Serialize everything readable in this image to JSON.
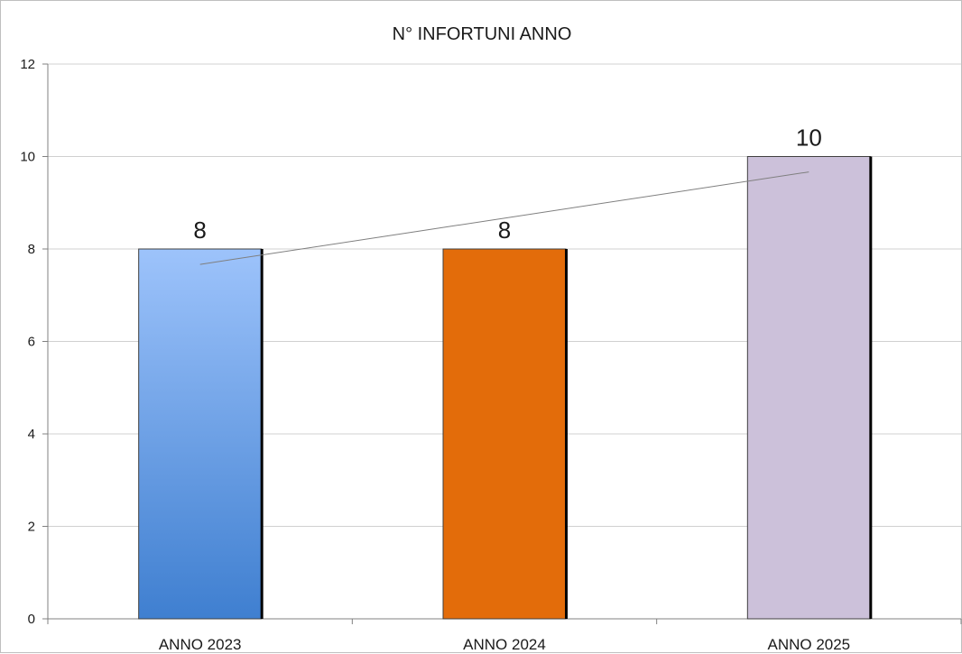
{
  "chart_data": {
    "type": "bar",
    "title": "N° INFORTUNI ANNO",
    "categories": [
      "ANNO 2023",
      "ANNO 2024",
      "ANNO 2025"
    ],
    "values": [
      8,
      8,
      10
    ],
    "data_labels": [
      "8",
      "8",
      "10"
    ],
    "bar_colors": [
      {
        "top": "#9dc3fb",
        "bottom": "#3f7fd0"
      },
      {
        "top": "#e36c0a",
        "bottom": "#e36c0a"
      },
      {
        "top": "#ccc1da",
        "bottom": "#ccc1da"
      }
    ],
    "ylim": [
      0,
      12
    ],
    "yticks": [
      0,
      2,
      4,
      6,
      8,
      10,
      12
    ],
    "ytick_labels": [
      "0",
      "2",
      "4",
      "6",
      "8",
      "10",
      "12"
    ],
    "grid": true,
    "trendline": true,
    "legend": "none",
    "xlabel": "",
    "ylabel": ""
  }
}
